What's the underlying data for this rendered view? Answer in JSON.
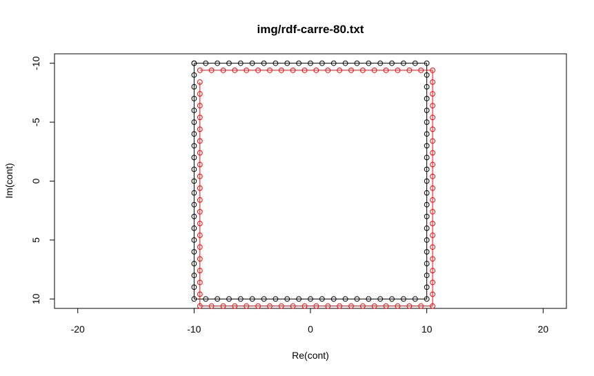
{
  "chart_data": {
    "type": "line",
    "title": "img/rdf-carre-80.txt",
    "xlabel": "Re(cont)",
    "ylabel": "Im(cont)",
    "xlim": [
      -22,
      22
    ],
    "ylim": [
      10.8,
      -10.8
    ],
    "y_axis_inverted": true,
    "x_ticks": [
      -20,
      -10,
      0,
      10,
      20
    ],
    "y_ticks": [
      -10,
      -5,
      0,
      5,
      10
    ],
    "x_tick_labels": [
      "-20",
      "-10",
      "0",
      "10",
      "20"
    ],
    "y_tick_labels": [
      "-10",
      "-5",
      "0",
      "5",
      "10"
    ],
    "grid": false,
    "legend": "none",
    "markers": "open-circle",
    "series": [
      {
        "color": "#000000",
        "x": [
          -10,
          -9,
          -8,
          -7,
          -6,
          -5,
          -4,
          -3,
          -2,
          -1,
          0,
          1,
          2,
          3,
          4,
          5,
          6,
          7,
          8,
          9,
          10,
          10,
          10,
          10,
          10,
          10,
          10,
          10,
          10,
          10,
          10,
          10,
          10,
          10,
          10,
          10,
          10,
          10,
          10,
          10,
          10,
          9,
          8,
          7,
          6,
          5,
          4,
          3,
          2,
          1,
          0,
          -1,
          -2,
          -3,
          -4,
          -5,
          -6,
          -7,
          -8,
          -9,
          -10,
          -10,
          -10,
          -10,
          -10,
          -10,
          -10,
          -10,
          -10,
          -10,
          -10,
          -10,
          -10,
          -10,
          -10,
          -10,
          -10,
          -10,
          -10,
          -10,
          -10
        ],
        "y": [
          -10,
          -10,
          -10,
          -10,
          -10,
          -10,
          -10,
          -10,
          -10,
          -10,
          -10,
          -10,
          -10,
          -10,
          -10,
          -10,
          -10,
          -10,
          -10,
          -10,
          -10,
          -9,
          -8,
          -7,
          -6,
          -5,
          -4,
          -3,
          -2,
          -1,
          0,
          1,
          2,
          3,
          4,
          5,
          6,
          7,
          8,
          9,
          10,
          10,
          10,
          10,
          10,
          10,
          10,
          10,
          10,
          10,
          10,
          10,
          10,
          10,
          10,
          10,
          10,
          10,
          10,
          10,
          10,
          9,
          8,
          7,
          6,
          5,
          4,
          3,
          2,
          1,
          0,
          -1,
          -2,
          -3,
          -4,
          -5,
          -6,
          -7,
          -8,
          -9,
          -10
        ]
      },
      {
        "color": "#ff0000",
        "x": [
          -9.5,
          -8.5,
          -7.5,
          -6.5,
          -5.5,
          -4.5,
          -3.5,
          -2.5,
          -1.5,
          -0.5,
          0.5,
          1.5,
          2.5,
          3.5,
          4.5,
          5.5,
          6.5,
          7.5,
          8.5,
          9.5,
          10.5,
          10.5,
          10.5,
          10.5,
          10.5,
          10.5,
          10.5,
          10.5,
          10.5,
          10.5,
          10.5,
          10.5,
          10.5,
          10.5,
          10.5,
          10.5,
          10.5,
          10.5,
          10.5,
          10.5,
          10.5,
          9.5,
          8.5,
          7.5,
          6.5,
          5.5,
          4.5,
          3.5,
          2.5,
          1.5,
          0.5,
          -0.5,
          -1.5,
          -2.5,
          -3.5,
          -4.5,
          -5.5,
          -6.5,
          -7.5,
          -8.5,
          -9.5,
          -9.5,
          -9.5,
          -9.5,
          -9.5,
          -9.5,
          -9.5,
          -9.5,
          -9.5,
          -9.5,
          -9.5,
          -9.5,
          -9.5,
          -9.5,
          -9.5,
          -9.5,
          -9.5,
          -9.5,
          -9.5,
          -9.5
        ],
        "y": [
          -9.4,
          -9.4,
          -9.4,
          -9.4,
          -9.4,
          -9.4,
          -9.4,
          -9.4,
          -9.4,
          -9.4,
          -9.4,
          -9.4,
          -9.4,
          -9.4,
          -9.4,
          -9.4,
          -9.4,
          -9.4,
          -9.4,
          -9.4,
          -9.4,
          -8.4,
          -7.4,
          -6.4,
          -5.4,
          -4.4,
          -3.4,
          -2.4,
          -1.4,
          -0.4,
          0.6,
          1.6,
          2.6,
          3.6,
          4.6,
          5.6,
          6.6,
          7.6,
          8.6,
          9.6,
          10.6,
          10.6,
          10.6,
          10.6,
          10.6,
          10.6,
          10.6,
          10.6,
          10.6,
          10.6,
          10.6,
          10.6,
          10.6,
          10.6,
          10.6,
          10.6,
          10.6,
          10.6,
          10.6,
          10.6,
          10.6,
          9.6,
          8.6,
          7.6,
          6.6,
          5.6,
          4.6,
          3.6,
          2.6,
          1.6,
          0.6,
          -0.4,
          -1.4,
          -2.4,
          -3.4,
          -4.4,
          -5.4,
          -6.4,
          -7.4,
          -8.4
        ]
      }
    ]
  }
}
